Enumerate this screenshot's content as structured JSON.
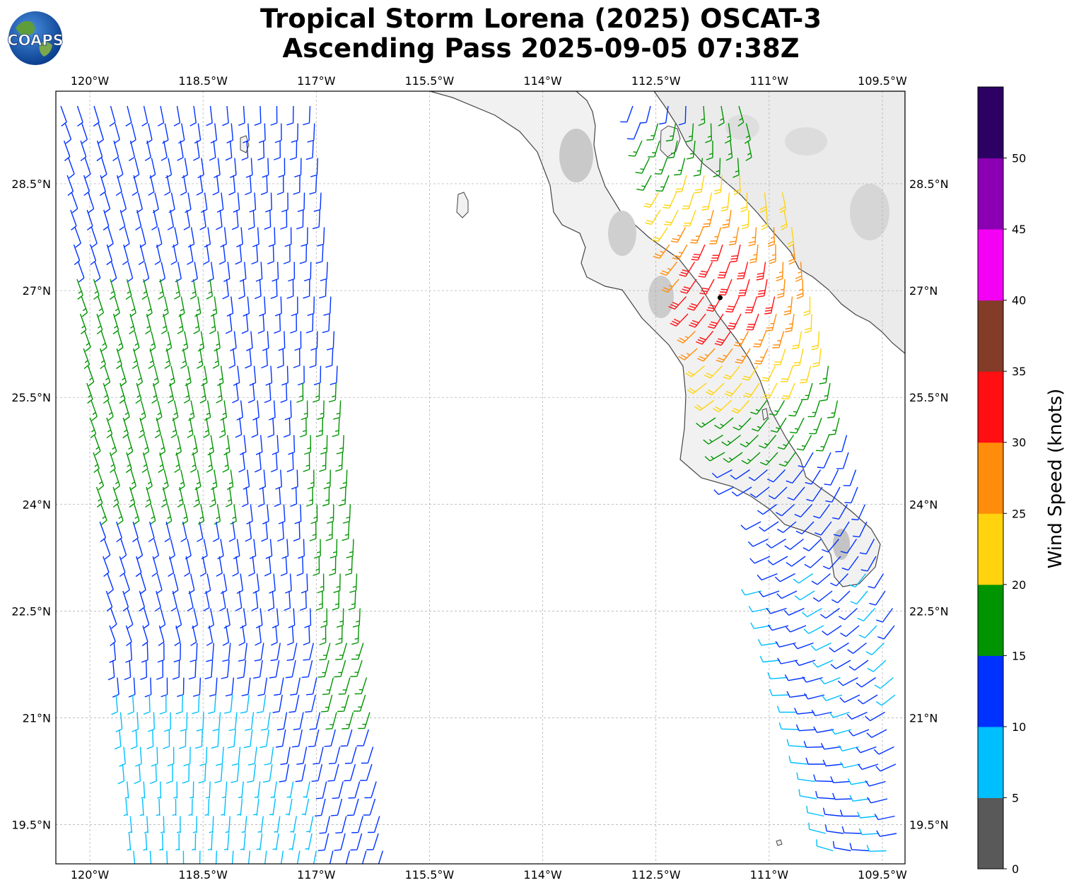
{
  "header": {
    "logo_text": "COAPS",
    "title_line1": "Tropical Storm Lorena (2025) OSCAT-3",
    "title_line2": "Ascending Pass 2025-09-05 07:38Z"
  },
  "map": {
    "lon_range": [
      -120.45,
      -109.2
    ],
    "lat_range": [
      18.95,
      29.8
    ],
    "grid": true,
    "lon_ticks": [
      {
        "value": -120,
        "label": "120°W"
      },
      {
        "value": -118.5,
        "label": "118.5°W"
      },
      {
        "value": -117,
        "label": "117°W"
      },
      {
        "value": -115.5,
        "label": "115.5°W"
      },
      {
        "value": -114,
        "label": "114°W"
      },
      {
        "value": -112.5,
        "label": "112.5°W"
      },
      {
        "value": -111,
        "label": "111°W"
      },
      {
        "value": -109.5,
        "label": "109.5°W"
      }
    ],
    "lat_ticks": [
      {
        "value": 28.5,
        "label": "28.5°N"
      },
      {
        "value": 27,
        "label": "27°N"
      },
      {
        "value": 25.5,
        "label": "25.5°N"
      },
      {
        "value": 24,
        "label": "24°N"
      },
      {
        "value": 22.5,
        "label": "22.5°N"
      },
      {
        "value": 21,
        "label": "21°N"
      },
      {
        "value": 19.5,
        "label": "19.5°N"
      }
    ],
    "storm_center": {
      "lon": -111.65,
      "lat": 26.9
    },
    "colors": {
      "coast": "#444444",
      "grid": "#aaaaaa",
      "land": "#efefef",
      "mountain": "#c6c6c6",
      "frame": "#000000"
    }
  },
  "colorbar": {
    "label": "Wind Speed (knots)",
    "bins": [
      {
        "min": 0,
        "max": 5,
        "color": "#595959"
      },
      {
        "min": 5,
        "max": 10,
        "color": "#00bfff"
      },
      {
        "min": 10,
        "max": 15,
        "color": "#0032ff"
      },
      {
        "min": 15,
        "max": 20,
        "color": "#009400"
      },
      {
        "min": 20,
        "max": 25,
        "color": "#ffd40e"
      },
      {
        "min": 25,
        "max": 30,
        "color": "#ff8c0a"
      },
      {
        "min": 30,
        "max": 35,
        "color": "#ff0f12"
      },
      {
        "min": 35,
        "max": 40,
        "color": "#823c28"
      },
      {
        "min": 40,
        "max": 45,
        "color": "#f400f4"
      },
      {
        "min": 45,
        "max": 50,
        "color": "#8c00b4"
      },
      {
        "min": 50,
        "max": 55,
        "color": "#2d0064"
      }
    ],
    "tick_labels": [
      "0",
      "5",
      "10",
      "15",
      "20",
      "25",
      "30",
      "35",
      "40",
      "45",
      "50"
    ]
  }
}
